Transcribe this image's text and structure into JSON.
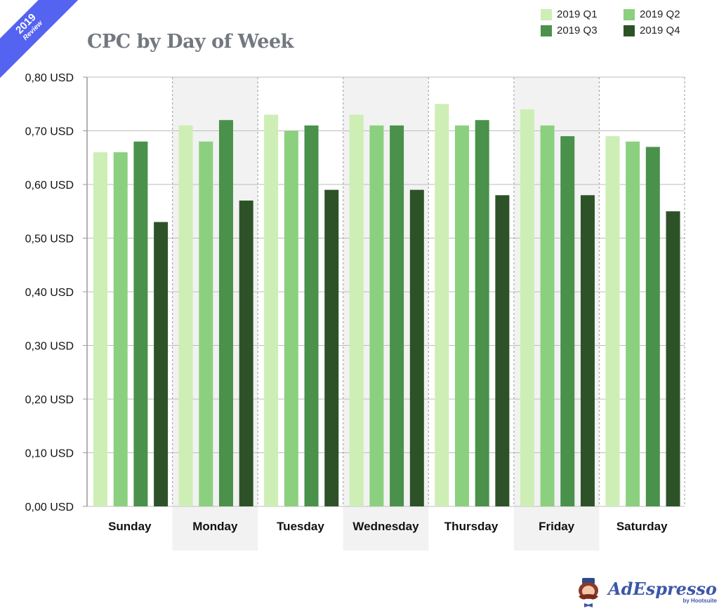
{
  "badge": {
    "year": "2019",
    "label": "Review"
  },
  "logo": {
    "brand": "AdEspresso",
    "byline": "by Hootsuite"
  },
  "colors": {
    "Q1": "#cdeeb5",
    "Q2": "#8bd07e",
    "Q3": "#4a914b",
    "Q4": "#2e5228",
    "shade": "#f2f2f2",
    "title": "#737880",
    "badge": "#5463f0"
  },
  "chart_data": {
    "type": "bar",
    "title": "CPC by Day of Week",
    "xlabel": "",
    "ylabel": "",
    "ylim": [
      0,
      0.8
    ],
    "yticks": [
      0,
      0.1,
      0.2,
      0.3,
      0.4,
      0.5,
      0.6,
      0.7,
      0.8
    ],
    "ytick_labels": [
      "0,00 USD",
      "0,10 USD",
      "0,20 USD",
      "0,30 USD",
      "0,40 USD",
      "0,50 USD",
      "0,60 USD",
      "0,70 USD",
      "0,80 USD"
    ],
    "categories": [
      "Sunday",
      "Monday",
      "Tuesday",
      "Wednesday",
      "Thursday",
      "Friday",
      "Saturday"
    ],
    "legend_position": "top-right",
    "grid": true,
    "series": [
      {
        "name": "2019 Q1",
        "values": [
          0.66,
          0.71,
          0.73,
          0.73,
          0.75,
          0.74,
          0.69
        ]
      },
      {
        "name": "2019 Q2",
        "values": [
          0.66,
          0.68,
          0.7,
          0.71,
          0.71,
          0.71,
          0.68
        ]
      },
      {
        "name": "2019 Q3",
        "values": [
          0.68,
          0.72,
          0.71,
          0.71,
          0.72,
          0.69,
          0.67
        ]
      },
      {
        "name": "2019 Q4",
        "values": [
          0.53,
          0.57,
          0.59,
          0.59,
          0.58,
          0.58,
          0.55
        ]
      }
    ]
  }
}
